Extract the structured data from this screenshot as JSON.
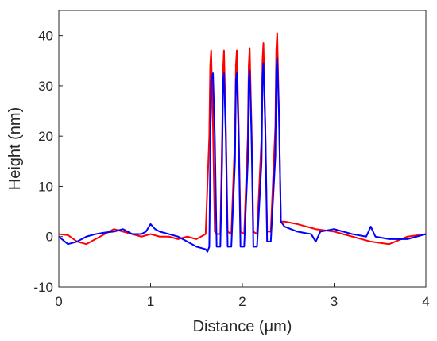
{
  "chart_data": {
    "type": "line",
    "xlabel": "Distance (μm)",
    "ylabel": "Height (nm)",
    "xlim": [
      0,
      4
    ],
    "ylim": [
      -10,
      45
    ],
    "xticks": [
      0,
      1,
      2,
      3,
      4
    ],
    "yticks": [
      -10,
      0,
      10,
      20,
      30,
      40
    ],
    "grid": false,
    "legend": "none",
    "series": [
      {
        "color": "#ff0000",
        "x": [
          0,
          0.1,
          0.2,
          0.3,
          0.4,
          0.5,
          0.6,
          0.7,
          0.8,
          0.9,
          1.0,
          1.1,
          1.2,
          1.3,
          1.4,
          1.5,
          1.6,
          1.64,
          1.65,
          1.66,
          1.68,
          1.7,
          1.72,
          1.76,
          1.78,
          1.79,
          1.8,
          1.82,
          1.84,
          1.88,
          1.92,
          1.93,
          1.94,
          1.96,
          1.98,
          2.02,
          2.06,
          2.07,
          2.08,
          2.1,
          2.12,
          2.16,
          2.21,
          2.22,
          2.23,
          2.25,
          2.27,
          2.31,
          2.36,
          2.37,
          2.38,
          2.4,
          2.42,
          2.46,
          2.6,
          2.8,
          3.0,
          3.2,
          3.4,
          3.6,
          3.8,
          4.0
        ],
        "y": [
          0.5,
          0.3,
          -1.0,
          -1.5,
          -0.5,
          0.5,
          1.5,
          1.0,
          0.5,
          0.0,
          0.5,
          0.0,
          0.0,
          -0.5,
          0.0,
          -0.5,
          0.5,
          20,
          34,
          37,
          22,
          1,
          0.5,
          0.5,
          20,
          33,
          37,
          22,
          1,
          0.5,
          20,
          34,
          37,
          22,
          1,
          0.5,
          20,
          34,
          37.5,
          22,
          1,
          0.5,
          20,
          35,
          38.5,
          22,
          1,
          1,
          22,
          37,
          40.5,
          24,
          3,
          3,
          2.5,
          1.5,
          1.0,
          0.0,
          -1.0,
          -1.5,
          0.0,
          0.5
        ]
      },
      {
        "color": "#0000ff",
        "x": [
          0,
          0.1,
          0.2,
          0.3,
          0.4,
          0.5,
          0.6,
          0.7,
          0.8,
          0.9,
          0.95,
          1.0,
          1.05,
          1.1,
          1.2,
          1.3,
          1.4,
          1.5,
          1.6,
          1.62,
          1.64,
          1.65,
          1.66,
          1.68,
          1.7,
          1.72,
          1.76,
          1.78,
          1.79,
          1.8,
          1.82,
          1.84,
          1.88,
          1.92,
          1.93,
          1.94,
          1.96,
          1.98,
          2.02,
          2.06,
          2.07,
          2.08,
          2.1,
          2.12,
          2.16,
          2.21,
          2.22,
          2.23,
          2.25,
          2.27,
          2.31,
          2.36,
          2.37,
          2.38,
          2.4,
          2.42,
          2.46,
          2.6,
          2.75,
          2.8,
          2.85,
          3.0,
          3.2,
          3.35,
          3.4,
          3.45,
          3.6,
          3.8,
          4.0
        ],
        "y": [
          0.0,
          -1.5,
          -1.0,
          0.0,
          0.5,
          0.8,
          1.0,
          1.5,
          0.5,
          0.5,
          1.0,
          2.5,
          1.5,
          1.0,
          0.5,
          0.0,
          -1.0,
          -2.0,
          -2.5,
          -3.0,
          -2,
          15,
          31,
          32.5,
          20,
          -2,
          -2,
          15,
          31,
          32.5,
          20,
          -2,
          -2,
          15,
          31,
          32.5,
          20,
          -2,
          -2,
          15,
          31,
          33,
          20,
          -2,
          -2,
          15,
          32,
          34.5,
          22,
          -1,
          -1,
          16,
          33,
          35.5,
          24,
          3,
          2,
          1,
          0.5,
          -1.0,
          1.0,
          1.5,
          0.5,
          0.0,
          2.0,
          0.0,
          -0.5,
          -0.5,
          0.5
        ]
      }
    ]
  }
}
